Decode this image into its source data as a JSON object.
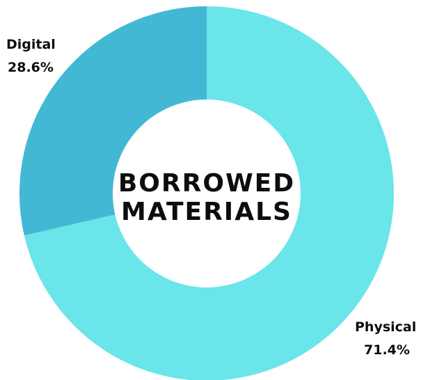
{
  "chart_data": {
    "type": "pie",
    "variant": "donut",
    "center_label": [
      "BORROWED",
      "MATERIALS"
    ],
    "slices": [
      {
        "name": "Physical",
        "value": 71.4,
        "label": "71.4%",
        "color": "#6ae5e9"
      },
      {
        "name": "Digital",
        "value": 28.6,
        "label": "28.6%",
        "color": "#42b8d5"
      }
    ],
    "start_angle": "12 o'clock",
    "direction": "clockwise"
  }
}
